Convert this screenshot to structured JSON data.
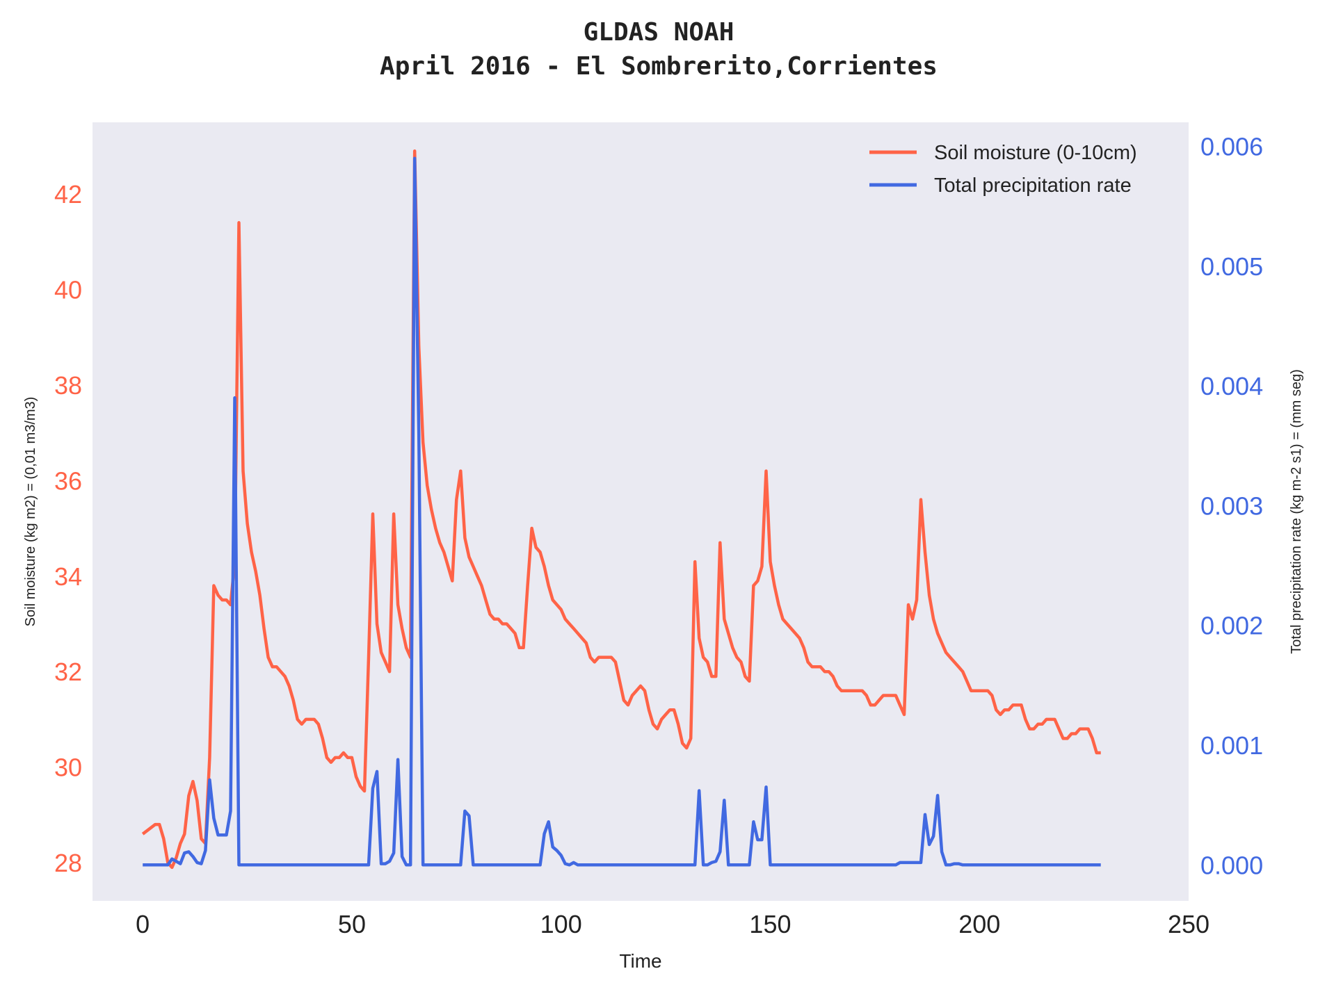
{
  "chart_data": {
    "type": "line",
    "title": "GLDAS NOAH",
    "subtitle": "April 2016 - El Sombrerito,Corrientes",
    "xlabel": "Time",
    "ylabel_left": "Soil moisture (kg m2) = (0,01 m3/m3)",
    "ylabel_right": "Total precipitation rate (kg m-2 s1) = (mm seg)",
    "xlim": [
      -12,
      250
    ],
    "ylim_left": [
      27.2,
      43.5
    ],
    "ylim_right": [
      -0.0003,
      0.0062
    ],
    "x_ticks": [
      "0",
      "50",
      "100",
      "150",
      "200",
      "250"
    ],
    "y_ticks_left": [
      "28",
      "30",
      "32",
      "34",
      "36",
      "38",
      "40",
      "42"
    ],
    "y_ticks_right": [
      "0.000",
      "0.001",
      "0.002",
      "0.003",
      "0.004",
      "0.005",
      "0.006"
    ],
    "grid": false,
    "legend_position": "top-right",
    "background": "#eaeaf2",
    "series": [
      {
        "name": "Soil moisture (0-10cm)",
        "axis": "left",
        "color": "#ff6347",
        "points": [
          [
            0,
            28.6
          ],
          [
            3,
            28.8
          ],
          [
            4,
            28.8
          ],
          [
            5,
            28.5
          ],
          [
            6,
            28.0
          ],
          [
            7,
            27.9
          ],
          [
            8,
            28.1
          ],
          [
            9,
            28.4
          ],
          [
            10,
            28.6
          ],
          [
            11,
            29.4
          ],
          [
            12,
            29.7
          ],
          [
            13,
            29.3
          ],
          [
            14,
            28.5
          ],
          [
            15,
            28.4
          ],
          [
            16,
            30.2
          ],
          [
            17,
            33.8
          ],
          [
            18,
            33.6
          ],
          [
            19,
            33.5
          ],
          [
            20,
            33.5
          ],
          [
            21,
            33.4
          ],
          [
            22,
            34.3
          ],
          [
            23,
            41.4
          ],
          [
            24,
            36.2
          ],
          [
            25,
            35.1
          ],
          [
            26,
            34.5
          ],
          [
            27,
            34.1
          ],
          [
            28,
            33.6
          ],
          [
            29,
            32.9
          ],
          [
            30,
            32.3
          ],
          [
            31,
            32.1
          ],
          [
            32,
            32.1
          ],
          [
            33,
            32.0
          ],
          [
            34,
            31.9
          ],
          [
            35,
            31.7
          ],
          [
            36,
            31.4
          ],
          [
            37,
            31.0
          ],
          [
            38,
            30.9
          ],
          [
            39,
            31.0
          ],
          [
            40,
            31.0
          ],
          [
            41,
            31.0
          ],
          [
            42,
            30.9
          ],
          [
            43,
            30.6
          ],
          [
            44,
            30.2
          ],
          [
            45,
            30.1
          ],
          [
            46,
            30.2
          ],
          [
            47,
            30.2
          ],
          [
            48,
            30.3
          ],
          [
            49,
            30.2
          ],
          [
            50,
            30.2
          ],
          [
            51,
            29.8
          ],
          [
            52,
            29.6
          ],
          [
            53,
            29.5
          ],
          [
            54,
            32.3
          ],
          [
            55,
            35.3
          ],
          [
            56,
            33.0
          ],
          [
            57,
            32.4
          ],
          [
            58,
            32.2
          ],
          [
            59,
            32.0
          ],
          [
            60,
            35.3
          ],
          [
            61,
            33.4
          ],
          [
            62,
            32.9
          ],
          [
            63,
            32.5
          ],
          [
            64,
            32.3
          ],
          [
            65,
            42.9
          ],
          [
            66,
            38.8
          ],
          [
            67,
            36.8
          ],
          [
            68,
            35.9
          ],
          [
            69,
            35.4
          ],
          [
            70,
            35.0
          ],
          [
            71,
            34.7
          ],
          [
            72,
            34.5
          ],
          [
            73,
            34.2
          ],
          [
            74,
            33.9
          ],
          [
            75,
            35.6
          ],
          [
            76,
            36.2
          ],
          [
            77,
            34.8
          ],
          [
            78,
            34.4
          ],
          [
            79,
            34.2
          ],
          [
            80,
            34.0
          ],
          [
            81,
            33.8
          ],
          [
            82,
            33.5
          ],
          [
            83,
            33.2
          ],
          [
            84,
            33.1
          ],
          [
            85,
            33.1
          ],
          [
            86,
            33.0
          ],
          [
            87,
            33.0
          ],
          [
            88,
            32.9
          ],
          [
            89,
            32.8
          ],
          [
            90,
            32.5
          ],
          [
            91,
            32.5
          ],
          [
            92,
            33.8
          ],
          [
            93,
            35.0
          ],
          [
            94,
            34.6
          ],
          [
            95,
            34.5
          ],
          [
            96,
            34.2
          ],
          [
            97,
            33.8
          ],
          [
            98,
            33.5
          ],
          [
            99,
            33.4
          ],
          [
            100,
            33.3
          ],
          [
            101,
            33.1
          ],
          [
            102,
            33.0
          ],
          [
            103,
            32.9
          ],
          [
            104,
            32.8
          ],
          [
            105,
            32.7
          ],
          [
            106,
            32.6
          ],
          [
            107,
            32.3
          ],
          [
            108,
            32.2
          ],
          [
            109,
            32.3
          ],
          [
            110,
            32.3
          ],
          [
            111,
            32.3
          ],
          [
            112,
            32.3
          ],
          [
            113,
            32.2
          ],
          [
            114,
            31.8
          ],
          [
            115,
            31.4
          ],
          [
            116,
            31.3
          ],
          [
            117,
            31.5
          ],
          [
            118,
            31.6
          ],
          [
            119,
            31.7
          ],
          [
            120,
            31.6
          ],
          [
            121,
            31.2
          ],
          [
            122,
            30.9
          ],
          [
            123,
            30.8
          ],
          [
            124,
            31.0
          ],
          [
            125,
            31.1
          ],
          [
            126,
            31.2
          ],
          [
            127,
            31.2
          ],
          [
            128,
            30.9
          ],
          [
            129,
            30.5
          ],
          [
            130,
            30.4
          ],
          [
            131,
            30.6
          ],
          [
            132,
            34.3
          ],
          [
            133,
            32.7
          ],
          [
            134,
            32.3
          ],
          [
            135,
            32.2
          ],
          [
            136,
            31.9
          ],
          [
            137,
            31.9
          ],
          [
            138,
            34.7
          ],
          [
            139,
            33.1
          ],
          [
            140,
            32.8
          ],
          [
            141,
            32.5
          ],
          [
            142,
            32.3
          ],
          [
            143,
            32.2
          ],
          [
            144,
            31.9
          ],
          [
            145,
            31.8
          ],
          [
            146,
            33.8
          ],
          [
            147,
            33.9
          ],
          [
            148,
            34.2
          ],
          [
            149,
            36.2
          ],
          [
            150,
            34.3
          ],
          [
            151,
            33.8
          ],
          [
            152,
            33.4
          ],
          [
            153,
            33.1
          ],
          [
            154,
            33.0
          ],
          [
            155,
            32.9
          ],
          [
            156,
            32.8
          ],
          [
            157,
            32.7
          ],
          [
            158,
            32.5
          ],
          [
            159,
            32.2
          ],
          [
            160,
            32.1
          ],
          [
            161,
            32.1
          ],
          [
            162,
            32.1
          ],
          [
            163,
            32.0
          ],
          [
            164,
            32.0
          ],
          [
            165,
            31.9
          ],
          [
            166,
            31.7
          ],
          [
            167,
            31.6
          ],
          [
            168,
            31.6
          ],
          [
            169,
            31.6
          ],
          [
            170,
            31.6
          ],
          [
            171,
            31.6
          ],
          [
            172,
            31.6
          ],
          [
            173,
            31.5
          ],
          [
            174,
            31.3
          ],
          [
            175,
            31.3
          ],
          [
            176,
            31.4
          ],
          [
            177,
            31.5
          ],
          [
            178,
            31.5
          ],
          [
            179,
            31.5
          ],
          [
            180,
            31.5
          ],
          [
            181,
            31.3
          ],
          [
            182,
            31.1
          ],
          [
            183,
            33.4
          ],
          [
            184,
            33.1
          ],
          [
            185,
            33.5
          ],
          [
            186,
            35.6
          ],
          [
            187,
            34.5
          ],
          [
            188,
            33.6
          ],
          [
            189,
            33.1
          ],
          [
            190,
            32.8
          ],
          [
            191,
            32.6
          ],
          [
            192,
            32.4
          ],
          [
            193,
            32.3
          ],
          [
            194,
            32.2
          ],
          [
            195,
            32.1
          ],
          [
            196,
            32.0
          ],
          [
            197,
            31.8
          ],
          [
            198,
            31.6
          ],
          [
            199,
            31.6
          ],
          [
            200,
            31.6
          ],
          [
            201,
            31.6
          ],
          [
            202,
            31.6
          ],
          [
            203,
            31.5
          ],
          [
            204,
            31.2
          ],
          [
            205,
            31.1
          ],
          [
            206,
            31.2
          ],
          [
            207,
            31.2
          ],
          [
            208,
            31.3
          ],
          [
            209,
            31.3
          ],
          [
            210,
            31.3
          ],
          [
            211,
            31.0
          ],
          [
            212,
            30.8
          ],
          [
            213,
            30.8
          ],
          [
            214,
            30.9
          ],
          [
            215,
            30.9
          ],
          [
            216,
            31.0
          ],
          [
            217,
            31.0
          ],
          [
            218,
            31.0
          ],
          [
            219,
            30.8
          ],
          [
            220,
            30.6
          ],
          [
            221,
            30.6
          ],
          [
            222,
            30.7
          ],
          [
            223,
            30.7
          ],
          [
            224,
            30.8
          ],
          [
            225,
            30.8
          ],
          [
            226,
            30.8
          ],
          [
            227,
            30.6
          ],
          [
            228,
            30.3
          ],
          [
            229,
            30.3
          ]
        ]
      },
      {
        "name": "Total precipitation rate",
        "axis": "right",
        "color": "#4169e1",
        "points": [
          [
            0,
            0.0
          ],
          [
            6,
            0.0
          ],
          [
            7,
            5e-05
          ],
          [
            8,
            3e-05
          ],
          [
            9,
            1e-05
          ],
          [
            10,
            0.0001
          ],
          [
            11,
            0.00011
          ],
          [
            12,
            7e-05
          ],
          [
            13,
            2e-05
          ],
          [
            14,
            1e-05
          ],
          [
            15,
            0.00012
          ],
          [
            16,
            0.00071
          ],
          [
            17,
            0.00039
          ],
          [
            18,
            0.00025
          ],
          [
            19,
            0.00025
          ],
          [
            20,
            0.00025
          ],
          [
            21,
            0.00045
          ],
          [
            22,
            0.0039
          ],
          [
            23,
            0.0
          ],
          [
            54,
            0.0
          ],
          [
            55,
            0.00064
          ],
          [
            56,
            0.00078
          ],
          [
            57,
            1e-05
          ],
          [
            58,
            1e-05
          ],
          [
            59,
            3e-05
          ],
          [
            60,
            0.0001
          ],
          [
            61,
            0.00088
          ],
          [
            62,
            7e-05
          ],
          [
            63,
            0.0
          ],
          [
            64,
            0.0
          ],
          [
            65,
            0.0059
          ],
          [
            66,
            0.0036
          ],
          [
            67,
            0.0
          ],
          [
            74,
            0.0
          ],
          [
            75,
            0.0
          ],
          [
            76,
            0.0
          ],
          [
            77,
            0.00045
          ],
          [
            78,
            0.00041
          ],
          [
            79,
            0.0
          ],
          [
            95,
            0.0
          ],
          [
            96,
            0.00026
          ],
          [
            97,
            0.00036
          ],
          [
            98,
            0.00015
          ],
          [
            99,
            0.00012
          ],
          [
            100,
            8e-05
          ],
          [
            101,
            1e-05
          ],
          [
            102,
            0.0
          ],
          [
            103,
            2e-05
          ],
          [
            104,
            0.0
          ],
          [
            132,
            0.0
          ],
          [
            133,
            0.00062
          ],
          [
            134,
            0.0
          ],
          [
            135,
            0.0
          ],
          [
            136,
            2e-05
          ],
          [
            137,
            3e-05
          ],
          [
            138,
            0.00011
          ],
          [
            139,
            0.00054
          ],
          [
            140,
            0.0
          ],
          [
            145,
            0.0
          ],
          [
            146,
            0.00036
          ],
          [
            147,
            0.00021
          ],
          [
            148,
            0.00021
          ],
          [
            149,
            0.00065
          ],
          [
            150,
            0.0
          ],
          [
            180,
            0.0
          ],
          [
            181,
            2e-05
          ],
          [
            182,
            2e-05
          ],
          [
            183,
            2e-05
          ],
          [
            184,
            2e-05
          ],
          [
            185,
            2e-05
          ],
          [
            186,
            2e-05
          ],
          [
            187,
            0.00042
          ],
          [
            188,
            0.00017
          ],
          [
            189,
            0.00024
          ],
          [
            190,
            0.00058
          ],
          [
            191,
            0.00011
          ],
          [
            192,
            0.0
          ],
          [
            193,
            0.0
          ],
          [
            194,
            1e-05
          ],
          [
            195,
            1e-05
          ],
          [
            196,
            0.0
          ],
          [
            229,
            0.0
          ]
        ]
      }
    ]
  }
}
